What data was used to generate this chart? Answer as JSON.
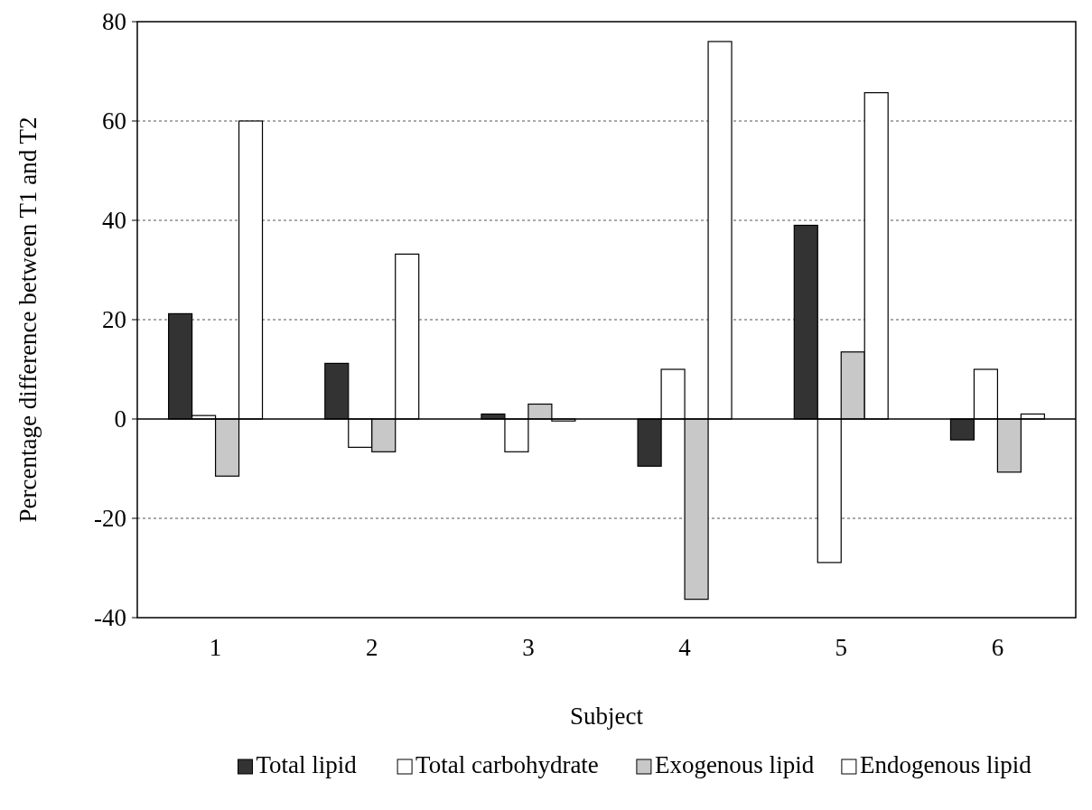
{
  "chart_data": {
    "type": "bar",
    "xlabel": "Subject",
    "ylabel": "Percentage difference between T1 and T2",
    "categories": [
      "1",
      "2",
      "3",
      "4",
      "5",
      "6"
    ],
    "series": [
      {
        "name": "Total lipid",
        "color": "#333333",
        "values": [
          21.2,
          11.2,
          1,
          -9.5,
          39,
          -4.2
        ]
      },
      {
        "name": "Total carbohydrate",
        "color": "#ffffff",
        "values": [
          0.7,
          -5.7,
          -6.6,
          10,
          -28.9,
          10
        ]
      },
      {
        "name": "Exogenous lipid",
        "color": "#c8c8c8",
        "values": [
          -11.5,
          -6.6,
          3,
          -36.3,
          13.5,
          -10.7
        ]
      },
      {
        "name": "Endogenous lipid",
        "color": "#ffffff",
        "values": [
          60,
          33.2,
          -0.4,
          76,
          65.7,
          1
        ]
      }
    ],
    "ylim": [
      -40,
      80
    ],
    "yticks": [
      -40,
      -20,
      0,
      20,
      40,
      60,
      80
    ],
    "grid": "y",
    "legend": "bottom"
  }
}
